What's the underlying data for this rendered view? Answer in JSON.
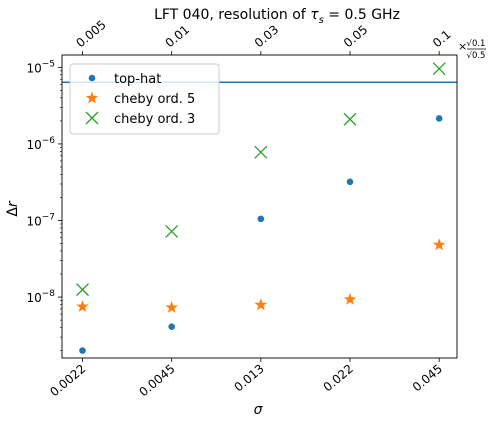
{
  "chart_data": {
    "type": "scatter",
    "title_prefix": "LFT 040, resolution of ",
    "title_symbol": "τ",
    "title_subscript": "s",
    "title_suffix": " = 0.5 GHz",
    "xlabel": "σ",
    "ylabel_main": "Δ",
    "ylabel_italic": "r",
    "y_scale": "log",
    "ylim": [
      1.6e-09,
      1.45e-05
    ],
    "x_positions": [
      1,
      2,
      3,
      4,
      5
    ],
    "xlim": [
      0.77,
      5.2
    ],
    "x_tick_labels": [
      "0.0022",
      "0.0045",
      "0.013",
      "0.022",
      "0.045"
    ],
    "top_tick_labels": [
      "0.005",
      "0.01",
      "0.03",
      "0.05",
      "0.1"
    ],
    "top_axis_multiplier": {
      "prefix": "×",
      "numerator": "√0.1",
      "denominator": "√0.5"
    },
    "y_ticks": [
      {
        "value": 1e-08,
        "base": "10",
        "exp": "−8"
      },
      {
        "value": 1e-07,
        "base": "10",
        "exp": "−7"
      },
      {
        "value": 1e-06,
        "base": "10",
        "exp": "−6"
      },
      {
        "value": 1e-05,
        "base": "10",
        "exp": "−5"
      }
    ],
    "hline": {
      "y": 6.4e-06,
      "color": "#1f77b4"
    },
    "legend_position": "upper left",
    "series": [
      {
        "name": "top-hat",
        "marker": "circle",
        "color": "#1f77b4",
        "x": [
          1,
          2,
          3,
          4,
          5
        ],
        "y": [
          2e-09,
          4.1e-09,
          1.05e-07,
          3.2e-07,
          2.15e-06
        ]
      },
      {
        "name": "cheby ord. 5",
        "marker": "star",
        "color": "#ff7f0e",
        "x": [
          1,
          2,
          3,
          4,
          5
        ],
        "y": [
          7.5e-09,
          7.3e-09,
          7.9e-09,
          9.3e-09,
          4.8e-08
        ]
      },
      {
        "name": "cheby ord. 3",
        "marker": "x",
        "color": "#2ca02c",
        "x": [
          1,
          2,
          3,
          4,
          5
        ],
        "y": [
          1.25e-08,
          7.2e-08,
          7.8e-07,
          2.1e-06,
          9.6e-06
        ]
      }
    ]
  }
}
